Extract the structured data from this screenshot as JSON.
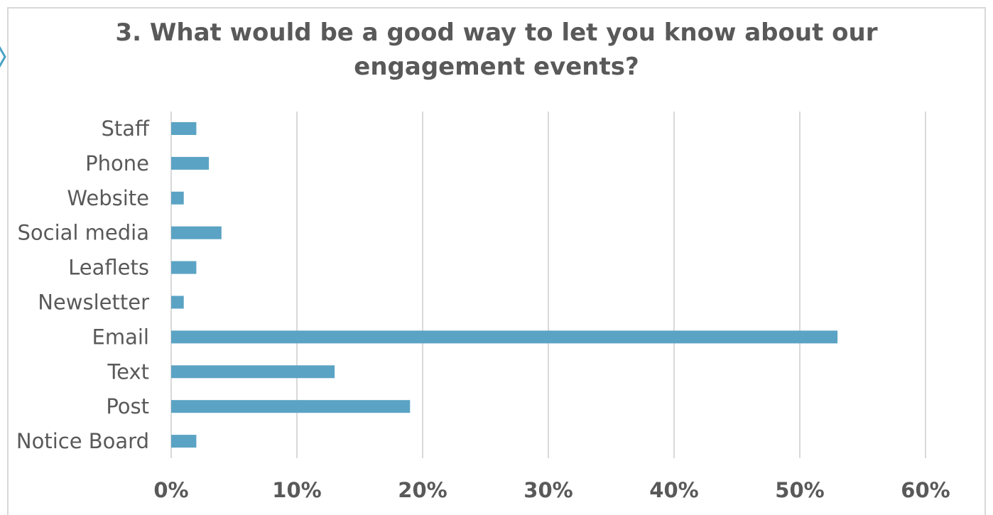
{
  "chart_data": {
    "type": "bar",
    "orientation": "horizontal",
    "title": "3. What would be a good way to let you know about our\nengagement events?",
    "categories": [
      "Staff",
      "Phone",
      "Website",
      "Social media",
      "Leaflets",
      "Newsletter",
      "Email",
      "Text",
      "Post",
      "Notice Board"
    ],
    "values": [
      0.02,
      0.03,
      0.01,
      0.04,
      0.02,
      0.01,
      0.53,
      0.13,
      0.19,
      0.02
    ],
    "xlim": [
      0,
      0.6
    ],
    "x_ticks": [
      0,
      0.1,
      0.2,
      0.3,
      0.4,
      0.5,
      0.6
    ],
    "x_tick_labels": [
      "0%",
      "10%",
      "20%",
      "30%",
      "40%",
      "50%",
      "60%"
    ],
    "xlabel": "",
    "ylabel": "",
    "grid": "vertical",
    "legend": "none",
    "bar_color": "#5ba3c4",
    "gridline_color": "#d9d9d9"
  }
}
